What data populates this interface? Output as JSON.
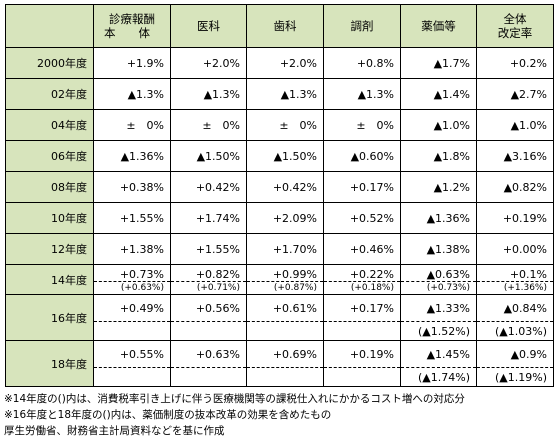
{
  "headers": {
    "corner": "",
    "honbun_line1": "診療報酬",
    "honbun_line2": "本　　体",
    "ika": "医科",
    "shika": "歯科",
    "chozai": "調剤",
    "yakka": "薬価等",
    "zentai_line1": "全体",
    "zentai_line2": "改定率"
  },
  "rows": [
    {
      "year": "2000年度",
      "honbun": "+1.9%",
      "ika": "+2.0%",
      "shika": "+2.0%",
      "chozai": "+0.8%",
      "yakka": "▲1.7%",
      "zentai": "+0.2%"
    },
    {
      "year": "02年度",
      "honbun": "▲1.3%",
      "ika": "▲1.3%",
      "shika": "▲1.3%",
      "chozai": "▲1.3%",
      "yakka": "▲1.4%",
      "zentai": "▲2.7%"
    },
    {
      "year": "04年度",
      "honbun": "±　0%",
      "ika": "±　0%",
      "shika": "±　0%",
      "chozai": "±　0%",
      "yakka": "▲1.0%",
      "zentai": "▲1.0%"
    },
    {
      "year": "06年度",
      "honbun": "▲1.36%",
      "ika": "▲1.50%",
      "shika": "▲1.50%",
      "chozai": "▲0.60%",
      "yakka": "▲1.8%",
      "zentai": "▲3.16%"
    },
    {
      "year": "08年度",
      "honbun": "+0.38%",
      "ika": "+0.42%",
      "shika": "+0.42%",
      "chozai": "+0.17%",
      "yakka": "▲1.2%",
      "zentai": "▲0.82%"
    },
    {
      "year": "10年度",
      "honbun": "+1.55%",
      "ika": "+1.74%",
      "shika": "+2.09%",
      "chozai": "+0.52%",
      "yakka": "▲1.36%",
      "zentai": "+0.19%"
    },
    {
      "year": "12年度",
      "honbun": "+1.38%",
      "ika": "+1.55%",
      "shika": "+1.70%",
      "chozai": "+0.46%",
      "yakka": "▲1.38%",
      "zentai": "+0.00%"
    }
  ],
  "row14": {
    "year": "14年度",
    "honbun": "+0.73%",
    "ika": "+0.82%",
    "shika": "+0.99%",
    "chozai": "+0.22%",
    "yakka": "▲0.63%",
    "zentai": "+0.1%",
    "sub_honbun": "(+0.63%)",
    "sub_ika": "(+0.71%)",
    "sub_shika": "(+0.87%)",
    "sub_chozai": "(+0.18%)",
    "sub_yakka": "(+0.73%)",
    "sub_zentai": "(+1.36%)"
  },
  "row16": {
    "year": "16年度",
    "honbun": "+0.49%",
    "ika": "+0.56%",
    "shika": "+0.61%",
    "chozai": "+0.17%",
    "yakka": "▲1.33%",
    "zentai": "▲0.84%",
    "sub_yakka": "(▲1.52%)",
    "sub_zentai": "(▲1.03%)"
  },
  "row18": {
    "year": "18年度",
    "honbun": "+0.55%",
    "ika": "+0.63%",
    "shika": "+0.69%",
    "chozai": "+0.19%",
    "yakka": "▲1.45%",
    "zentai": "▲0.9%",
    "sub_yakka": "(▲1.74%)",
    "sub_zentai": "(▲1.19%)"
  },
  "notes": {
    "note1": "※14年度の()内は、消費税率引き上げに伴う医療機関等の課税仕入れにかかるコスト増への対応分",
    "note2": "※16年度と18年度の()内は、薬価制度の抜本改革の効果を含めたもの",
    "source": "厚生労働省、財務省主計局資料などを基に作成"
  }
}
